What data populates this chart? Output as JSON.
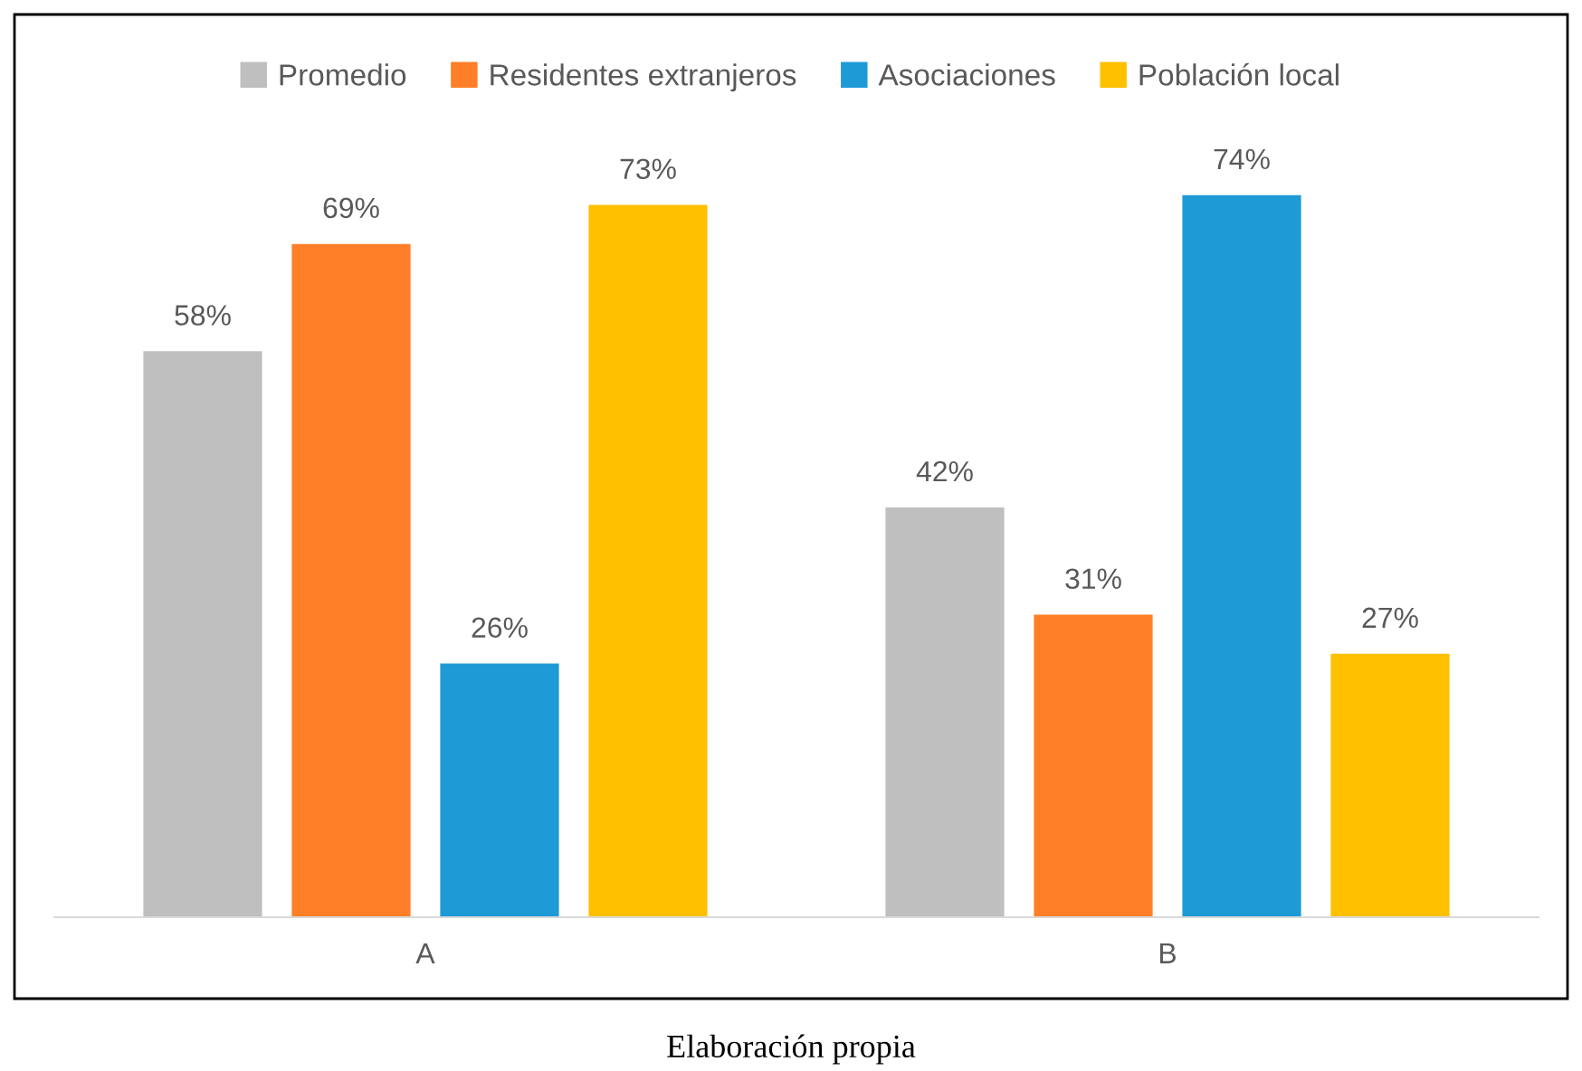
{
  "chart_data": {
    "type": "bar",
    "categories": [
      "A",
      "B"
    ],
    "series": [
      {
        "name": "Promedio",
        "color": "#bfbfbf",
        "values": [
          58,
          42
        ],
        "value_labels": [
          "58%",
          "42%"
        ]
      },
      {
        "name": "Residentes extranjeros",
        "color": "#fe7f27",
        "values": [
          69,
          31
        ],
        "value_labels": [
          "69%",
          "31%"
        ]
      },
      {
        "name": "Asociaciones",
        "color": "#1e9ad6",
        "values": [
          26,
          74
        ],
        "value_labels": [
          "26%",
          "74%"
        ]
      },
      {
        "name": "Población local",
        "color": "#ffc000",
        "values": [
          73,
          27
        ],
        "value_labels": [
          "73%",
          "27%"
        ]
      }
    ],
    "legend": "top",
    "tick_labels": "x",
    "grid": false,
    "annotations": [
      "Elaboración propia"
    ]
  }
}
